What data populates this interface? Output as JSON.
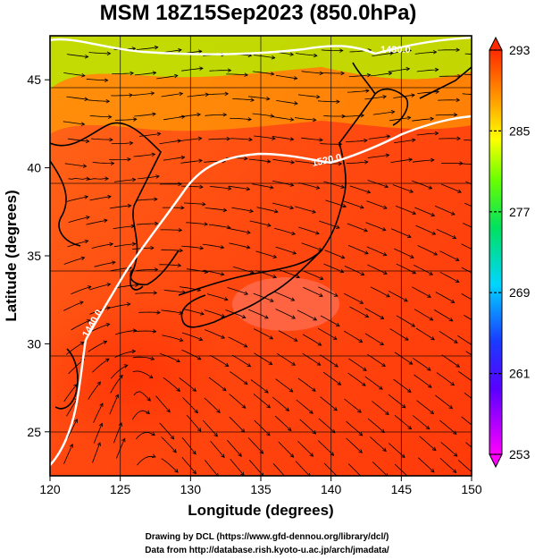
{
  "chart_data": {
    "type": "heatmap",
    "title": "MSM 18Z15Sep2023 (850.0hPa)",
    "xlabel": "Longitude (degrees)",
    "ylabel": "Latitude  (degrees)",
    "xlim": [
      120,
      150
    ],
    "ylim": [
      22.5,
      47.5
    ],
    "xticks": [
      "120",
      "125",
      "130",
      "135",
      "140",
      "145",
      "150"
    ],
    "yticks": [
      "25",
      "30",
      "35",
      "40",
      "45"
    ],
    "colorbar": {
      "min": 253,
      "max": 293,
      "ticks": [
        "293",
        "285",
        "277",
        "269",
        "261",
        "253"
      ],
      "colors": [
        "#ff00ff",
        "#1a1aff",
        "#00e5ff",
        "#00ff00",
        "#ffff00",
        "#ff8000",
        "#ff2000"
      ]
    },
    "contour_labels": [
      "1440.0",
      "1480.0",
      "1520.0"
    ],
    "grid": true,
    "credits": [
      "Drawing by DCL (https://www.gfd-dennou.org/library/dcl/)",
      "Data from http://database.rish.kyoto-u.ac.jp/arch/jmadata/"
    ]
  }
}
